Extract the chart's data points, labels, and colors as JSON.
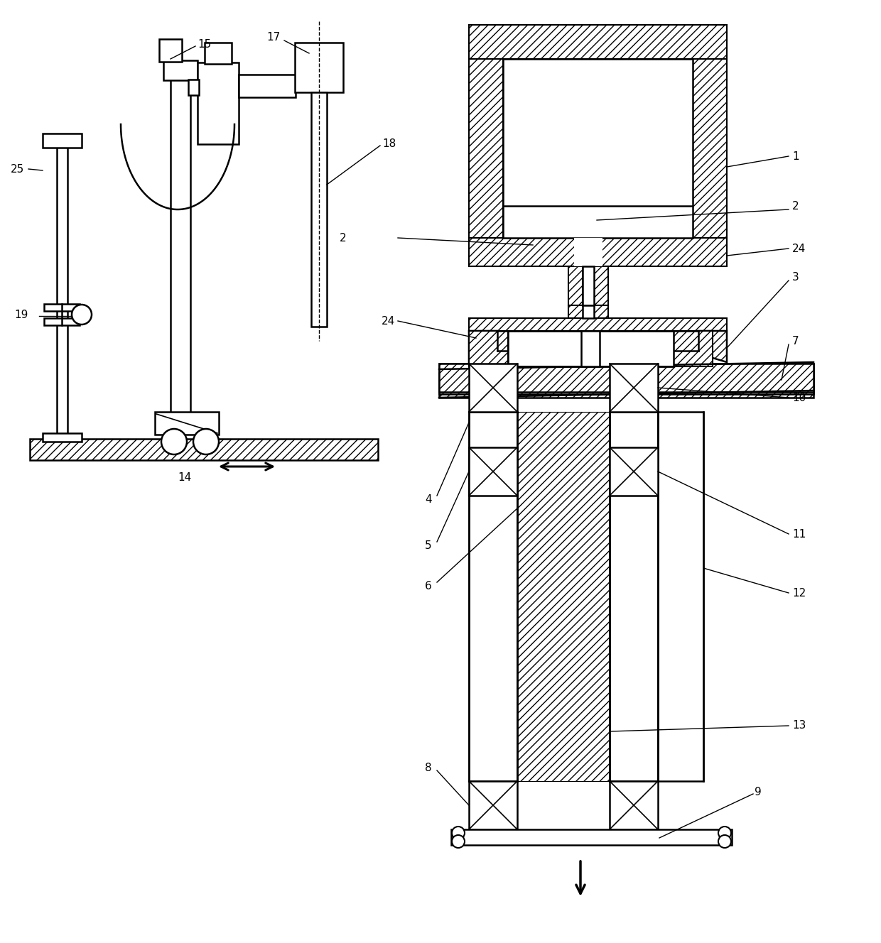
{
  "bg_color": "#ffffff",
  "lc": "#000000",
  "lw": 1.5
}
